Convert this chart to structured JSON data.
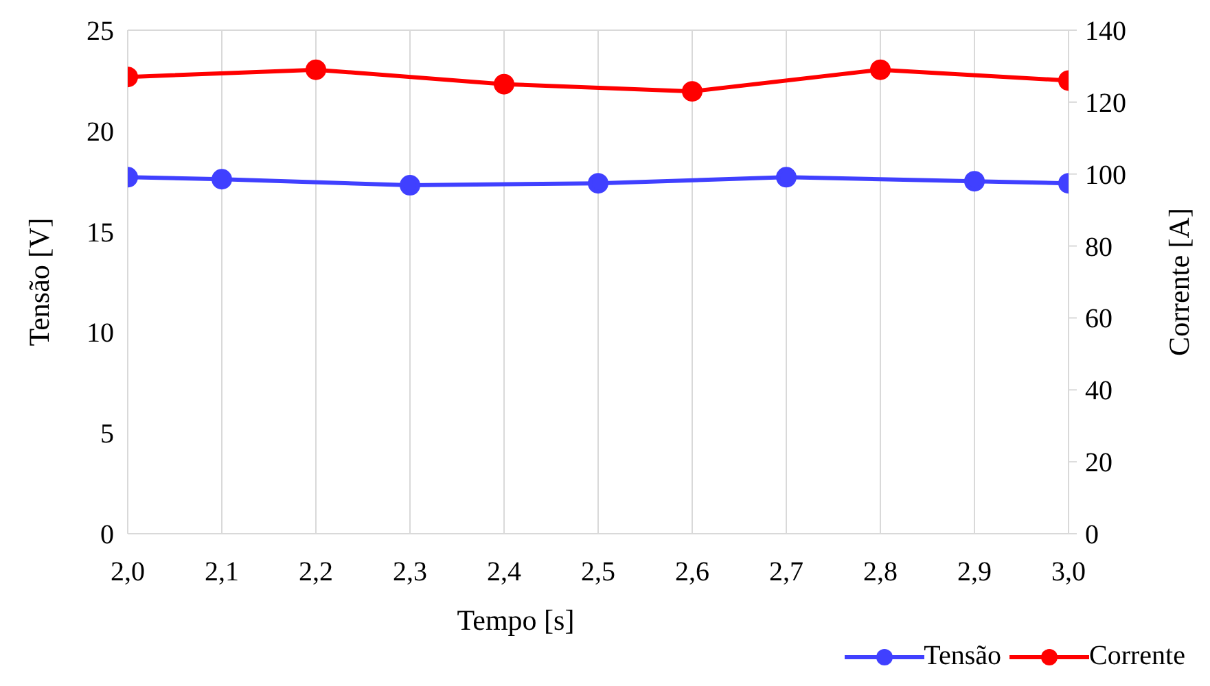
{
  "chart_data": {
    "type": "line",
    "xlabel": "Tempo [s]",
    "ylabel": "Tensão [V]",
    "y2label": "Corrente [A]",
    "xlim": [
      2.0,
      3.0
    ],
    "xticks": [
      {
        "value": 2.0,
        "label": "2,0"
      },
      {
        "value": 2.1,
        "label": "2,1"
      },
      {
        "value": 2.2,
        "label": "2,2"
      },
      {
        "value": 2.3,
        "label": "2,3"
      },
      {
        "value": 2.4,
        "label": "2,4"
      },
      {
        "value": 2.5,
        "label": "2,5"
      },
      {
        "value": 2.6,
        "label": "2,6"
      },
      {
        "value": 2.7,
        "label": "2,7"
      },
      {
        "value": 2.8,
        "label": "2,8"
      },
      {
        "value": 2.9,
        "label": "2,9"
      },
      {
        "value": 3.0,
        "label": "3,0"
      }
    ],
    "ylim": [
      0,
      25
    ],
    "yticks": [
      0,
      5,
      10,
      15,
      20,
      25
    ],
    "y2lim": [
      0,
      140
    ],
    "y2ticks": [
      0,
      20,
      40,
      60,
      80,
      100,
      120,
      140
    ],
    "grid": true,
    "legend": "bottom right",
    "marker": "circle",
    "line_style": "solid",
    "series": [
      {
        "name": "Tensão",
        "color": "#4040ff",
        "x": [
          2.0,
          2.1,
          2.3,
          2.5,
          2.7,
          2.9,
          3.0
        ],
        "values": [
          17.7,
          17.6,
          17.3,
          17.4,
          17.7,
          17.5,
          17.4
        ]
      },
      {
        "name": "Corrente",
        "color": "#ff0000",
        "axis": "y2",
        "x": [
          2.0,
          2.2,
          2.4,
          2.6,
          2.8,
          3.0
        ],
        "values": [
          127,
          129,
          125,
          123,
          129,
          126
        ]
      }
    ]
  }
}
